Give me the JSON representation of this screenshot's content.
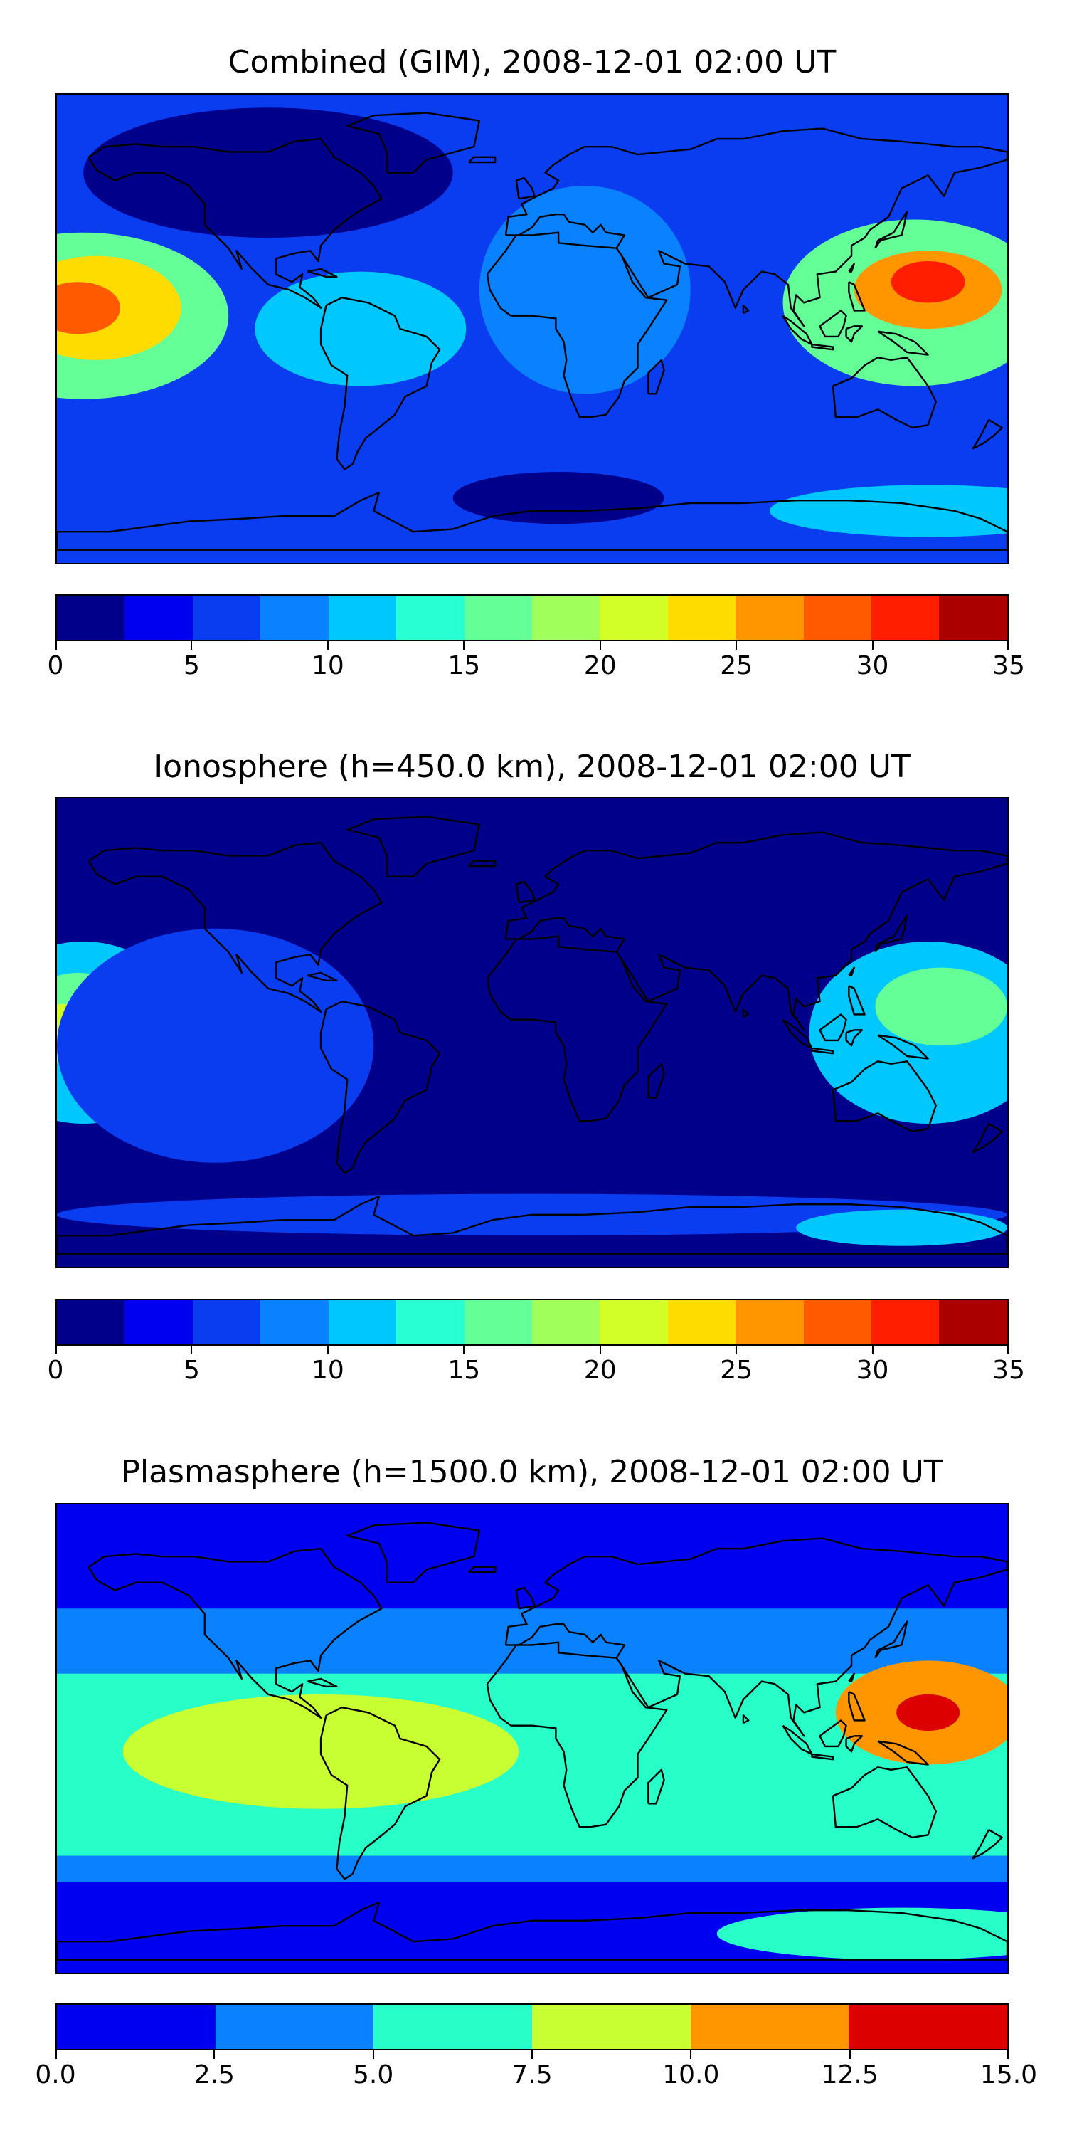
{
  "chart_data": [
    {
      "type": "heatmap",
      "title": "Combined (GIM), 2008-12-01 02:00 UT",
      "levels": [
        0,
        2.5,
        5,
        7.5,
        10,
        12.5,
        15,
        17.5,
        20,
        22.5,
        25,
        27.5,
        30,
        32.5,
        35
      ],
      "colorbar_ticks": [
        "0",
        "5",
        "10",
        "15",
        "20",
        "25",
        "30",
        "35"
      ],
      "colorbar_tick_values": [
        0,
        5,
        10,
        15,
        20,
        25,
        30,
        35
      ],
      "colors": [
        "#00008b",
        "#0000f0",
        "#0a3cf0",
        "#0a82ff",
        "#00c8ff",
        "#28ffd2",
        "#64ff96",
        "#a0ff5a",
        "#d2ff28",
        "#ffdc00",
        "#ff9600",
        "#ff5a00",
        "#ff1e00",
        "#aa0000"
      ],
      "background_level": 5,
      "grid": false,
      "blobs": [
        {
          "lon": -170,
          "lat": 5,
          "rlon": 55,
          "rlat": 32,
          "value": 16
        },
        {
          "lon": -165,
          "lat": 8,
          "rlon": 32,
          "rlat": 20,
          "value": 24
        },
        {
          "lon": -172,
          "lat": 8,
          "rlon": 16,
          "rlat": 10,
          "value": 28
        },
        {
          "lon": -65,
          "lat": 0,
          "rlon": 40,
          "rlat": 22,
          "value": 10
        },
        {
          "lon": 145,
          "lat": 10,
          "rlon": 50,
          "rlat": 32,
          "value": 16
        },
        {
          "lon": 150,
          "lat": 15,
          "rlon": 28,
          "rlat": 15,
          "value": 25
        },
        {
          "lon": 150,
          "lat": 18,
          "rlon": 14,
          "rlat": 8,
          "value": 30
        },
        {
          "lon": 20,
          "lat": 15,
          "rlon": 40,
          "rlat": 40,
          "value": 8
        },
        {
          "lon": 10,
          "lat": -65,
          "rlon": 40,
          "rlat": 10,
          "value": 2
        },
        {
          "lon": -100,
          "lat": 60,
          "rlon": 70,
          "rlat": 25,
          "value": 1
        },
        {
          "lon": 150,
          "lat": -70,
          "rlon": 60,
          "rlat": 10,
          "value": 10
        }
      ]
    },
    {
      "type": "heatmap",
      "title": "Ionosphere  (h=450.0 km), 2008-12-01 02:00 UT",
      "levels": [
        0,
        2.5,
        5,
        7.5,
        10,
        12.5,
        15,
        17.5,
        20,
        22.5,
        25,
        27.5,
        30,
        32.5,
        35
      ],
      "colorbar_ticks": [
        "0",
        "5",
        "10",
        "15",
        "20",
        "25",
        "30",
        "35"
      ],
      "colorbar_tick_values": [
        0,
        5,
        10,
        15,
        20,
        25,
        30,
        35
      ],
      "colors": [
        "#00008b",
        "#0000f0",
        "#0a3cf0",
        "#0a82ff",
        "#00c8ff",
        "#28ffd2",
        "#64ff96",
        "#a0ff5a",
        "#d2ff28",
        "#ffdc00",
        "#ff9600",
        "#ff5a00",
        "#ff1e00",
        "#aa0000"
      ],
      "background_level": 1,
      "grid": false,
      "blobs": [
        {
          "lon": -170,
          "lat": 0,
          "rlon": 40,
          "rlat": 35,
          "value": 12
        },
        {
          "lon": -172,
          "lat": 5,
          "rlon": 22,
          "rlat": 18,
          "value": 17
        },
        {
          "lon": -178,
          "lat": 5,
          "rlon": 8,
          "rlat": 6,
          "value": 21
        },
        {
          "lon": 150,
          "lat": 0,
          "rlon": 45,
          "rlat": 35,
          "value": 12
        },
        {
          "lon": 155,
          "lat": 10,
          "rlon": 25,
          "rlat": 15,
          "value": 17
        },
        {
          "lon": -120,
          "lat": -5,
          "rlon": 60,
          "rlat": 45,
          "value": 6
        },
        {
          "lon": 0,
          "lat": -70,
          "rlon": 180,
          "rlat": 8,
          "value": 6
        },
        {
          "lon": 140,
          "lat": -75,
          "rlon": 40,
          "rlat": 7,
          "value": 10
        }
      ]
    },
    {
      "type": "heatmap",
      "title": "Plasmasphere (h=1500.0 km), 2008-12-01 02:00 UT",
      "levels": [
        0,
        2.5,
        5,
        7.5,
        10,
        12.5,
        15
      ],
      "colorbar_ticks": [
        "0.0",
        "2.5",
        "5.0",
        "7.5",
        "10.0",
        "12.5",
        "15.0"
      ],
      "colorbar_tick_values": [
        0,
        2.5,
        5,
        7.5,
        10,
        12.5,
        15
      ],
      "colors": [
        "#0000f0",
        "#0a82ff",
        "#28ffc8",
        "#c8ff32",
        "#ff9600",
        "#dc0000"
      ],
      "background_level": 1,
      "grid": false,
      "bands": [
        {
          "lat_min": 50,
          "lat_max": 90,
          "value": 1
        },
        {
          "lat_min": 25,
          "lat_max": 50,
          "value": 3
        },
        {
          "lat_min": -45,
          "lat_max": 25,
          "value": 6
        },
        {
          "lat_min": -55,
          "lat_max": -45,
          "value": 3
        },
        {
          "lat_min": -90,
          "lat_max": -55,
          "value": 1
        }
      ],
      "blobs": [
        {
          "lon": -80,
          "lat": -5,
          "rlon": 75,
          "rlat": 22,
          "value": 8.5
        },
        {
          "lon": 150,
          "lat": 10,
          "rlon": 35,
          "rlat": 20,
          "value": 11
        },
        {
          "lon": 150,
          "lat": 10,
          "rlon": 12,
          "rlat": 7,
          "value": 13.5
        },
        {
          "lon": 140,
          "lat": -75,
          "rlon": 70,
          "rlat": 10,
          "value": 6
        }
      ]
    }
  ]
}
